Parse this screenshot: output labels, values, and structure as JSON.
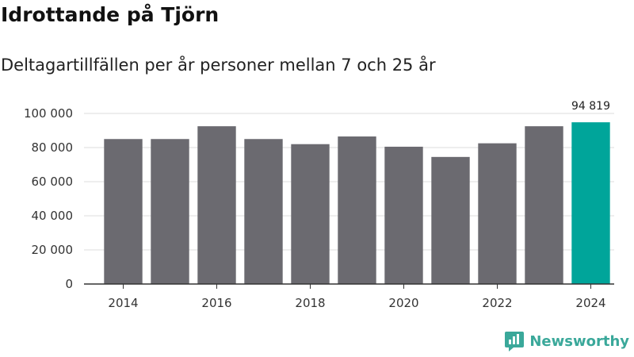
{
  "chart_data": {
    "type": "bar",
    "title": "Idrottande på Tjörn",
    "subtitle": "Deltagartillfällen per år personer mellan 7 och 25 år",
    "categories": [
      "2014",
      "2015",
      "2016",
      "2017",
      "2018",
      "2019",
      "2020",
      "2021",
      "2022",
      "2023",
      "2024"
    ],
    "values": [
      85000,
      85000,
      92500,
      85000,
      82000,
      86500,
      80500,
      74500,
      82500,
      92500,
      94819
    ],
    "x_tick_labels": [
      "2014",
      "2016",
      "2018",
      "2020",
      "2022",
      "2024"
    ],
    "y_ticks": [
      0,
      20000,
      40000,
      60000,
      80000,
      100000
    ],
    "y_tick_labels": [
      "0",
      "20 000",
      "40 000",
      "60 000",
      "80 000",
      "100 000"
    ],
    "ylim": [
      0,
      100000
    ],
    "highlight_index": 10,
    "highlight_label": "94 819",
    "colors": {
      "bar": "#6b6a70",
      "highlight": "#00a59a",
      "grid": "#dddddd",
      "axis": "#333333"
    },
    "grid": true,
    "xlabel": "",
    "ylabel": ""
  },
  "branding": {
    "logo_text": "Newsworthy",
    "logo_icon": "newsworthy-chart-bubble-icon"
  }
}
